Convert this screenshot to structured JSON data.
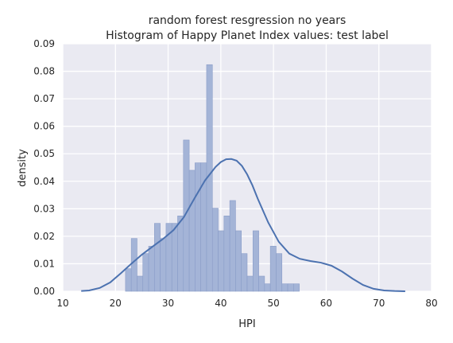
{
  "chart_data": {
    "type": "bar",
    "title": "random forest resgression no years",
    "subtitle": "Histogram of Happy Planet Index values: test label",
    "xlabel": "HPI",
    "ylabel": "density",
    "xlim": [
      10,
      80
    ],
    "ylim": [
      0,
      0.09
    ],
    "xticks": [
      "10",
      "20",
      "30",
      "40",
      "50",
      "60",
      "70",
      "80"
    ],
    "yticks": [
      "0.00",
      "0.01",
      "0.02",
      "0.03",
      "0.04",
      "0.05",
      "0.06",
      "0.07",
      "0.08",
      "0.09"
    ],
    "grid": true,
    "legend": "none",
    "bin_width": 1.1,
    "bins": [
      {
        "x": 21.9,
        "value": 0.0082
      },
      {
        "x": 23.0,
        "value": 0.0192
      },
      {
        "x": 24.1,
        "value": 0.0055
      },
      {
        "x": 25.2,
        "value": 0.0137
      },
      {
        "x": 26.3,
        "value": 0.0164
      },
      {
        "x": 27.4,
        "value": 0.0247
      },
      {
        "x": 28.5,
        "value": 0.0192
      },
      {
        "x": 29.6,
        "value": 0.0247
      },
      {
        "x": 30.7,
        "value": 0.0247
      },
      {
        "x": 31.8,
        "value": 0.0274
      },
      {
        "x": 32.9,
        "value": 0.055
      },
      {
        "x": 34.0,
        "value": 0.044
      },
      {
        "x": 35.1,
        "value": 0.0467
      },
      {
        "x": 36.2,
        "value": 0.0467
      },
      {
        "x": 37.3,
        "value": 0.0824
      },
      {
        "x": 38.4,
        "value": 0.0302
      },
      {
        "x": 39.5,
        "value": 0.022
      },
      {
        "x": 40.6,
        "value": 0.0274
      },
      {
        "x": 41.7,
        "value": 0.033
      },
      {
        "x": 42.8,
        "value": 0.022
      },
      {
        "x": 43.9,
        "value": 0.0137
      },
      {
        "x": 45.0,
        "value": 0.0055
      },
      {
        "x": 46.1,
        "value": 0.022
      },
      {
        "x": 47.2,
        "value": 0.0055
      },
      {
        "x": 48.3,
        "value": 0.0027
      },
      {
        "x": 49.4,
        "value": 0.0164
      },
      {
        "x": 50.5,
        "value": 0.0137
      },
      {
        "x": 51.6,
        "value": 0.0027
      },
      {
        "x": 52.7,
        "value": 0.0027
      },
      {
        "x": 53.8,
        "value": 0.0027
      }
    ],
    "kde": {
      "x": [
        13.5,
        15,
        17,
        19,
        21,
        23,
        25,
        27,
        29,
        31,
        33,
        35,
        37,
        39,
        40,
        41,
        42,
        43,
        44,
        45,
        46,
        47,
        49,
        51,
        53,
        55,
        57,
        59,
        61,
        63,
        65,
        67,
        69,
        71,
        73,
        75
      ],
      "y": [
        0.0001,
        0.0003,
        0.0012,
        0.0032,
        0.0065,
        0.01,
        0.0133,
        0.0162,
        0.019,
        0.0222,
        0.027,
        0.0338,
        0.0403,
        0.0452,
        0.047,
        0.048,
        0.0481,
        0.0475,
        0.0456,
        0.0425,
        0.0385,
        0.0337,
        0.025,
        0.018,
        0.0137,
        0.0118,
        0.011,
        0.0104,
        0.0093,
        0.0072,
        0.0046,
        0.0023,
        0.0009,
        0.0003,
        0.0001,
        0.0
      ]
    },
    "colors": {
      "bar_fill": "#a4b4d7",
      "bar_edge": "#8a9dc8",
      "kde_line": "#4c72b0",
      "plot_background": "#eaeaf2",
      "grid": "#ffffff"
    }
  }
}
